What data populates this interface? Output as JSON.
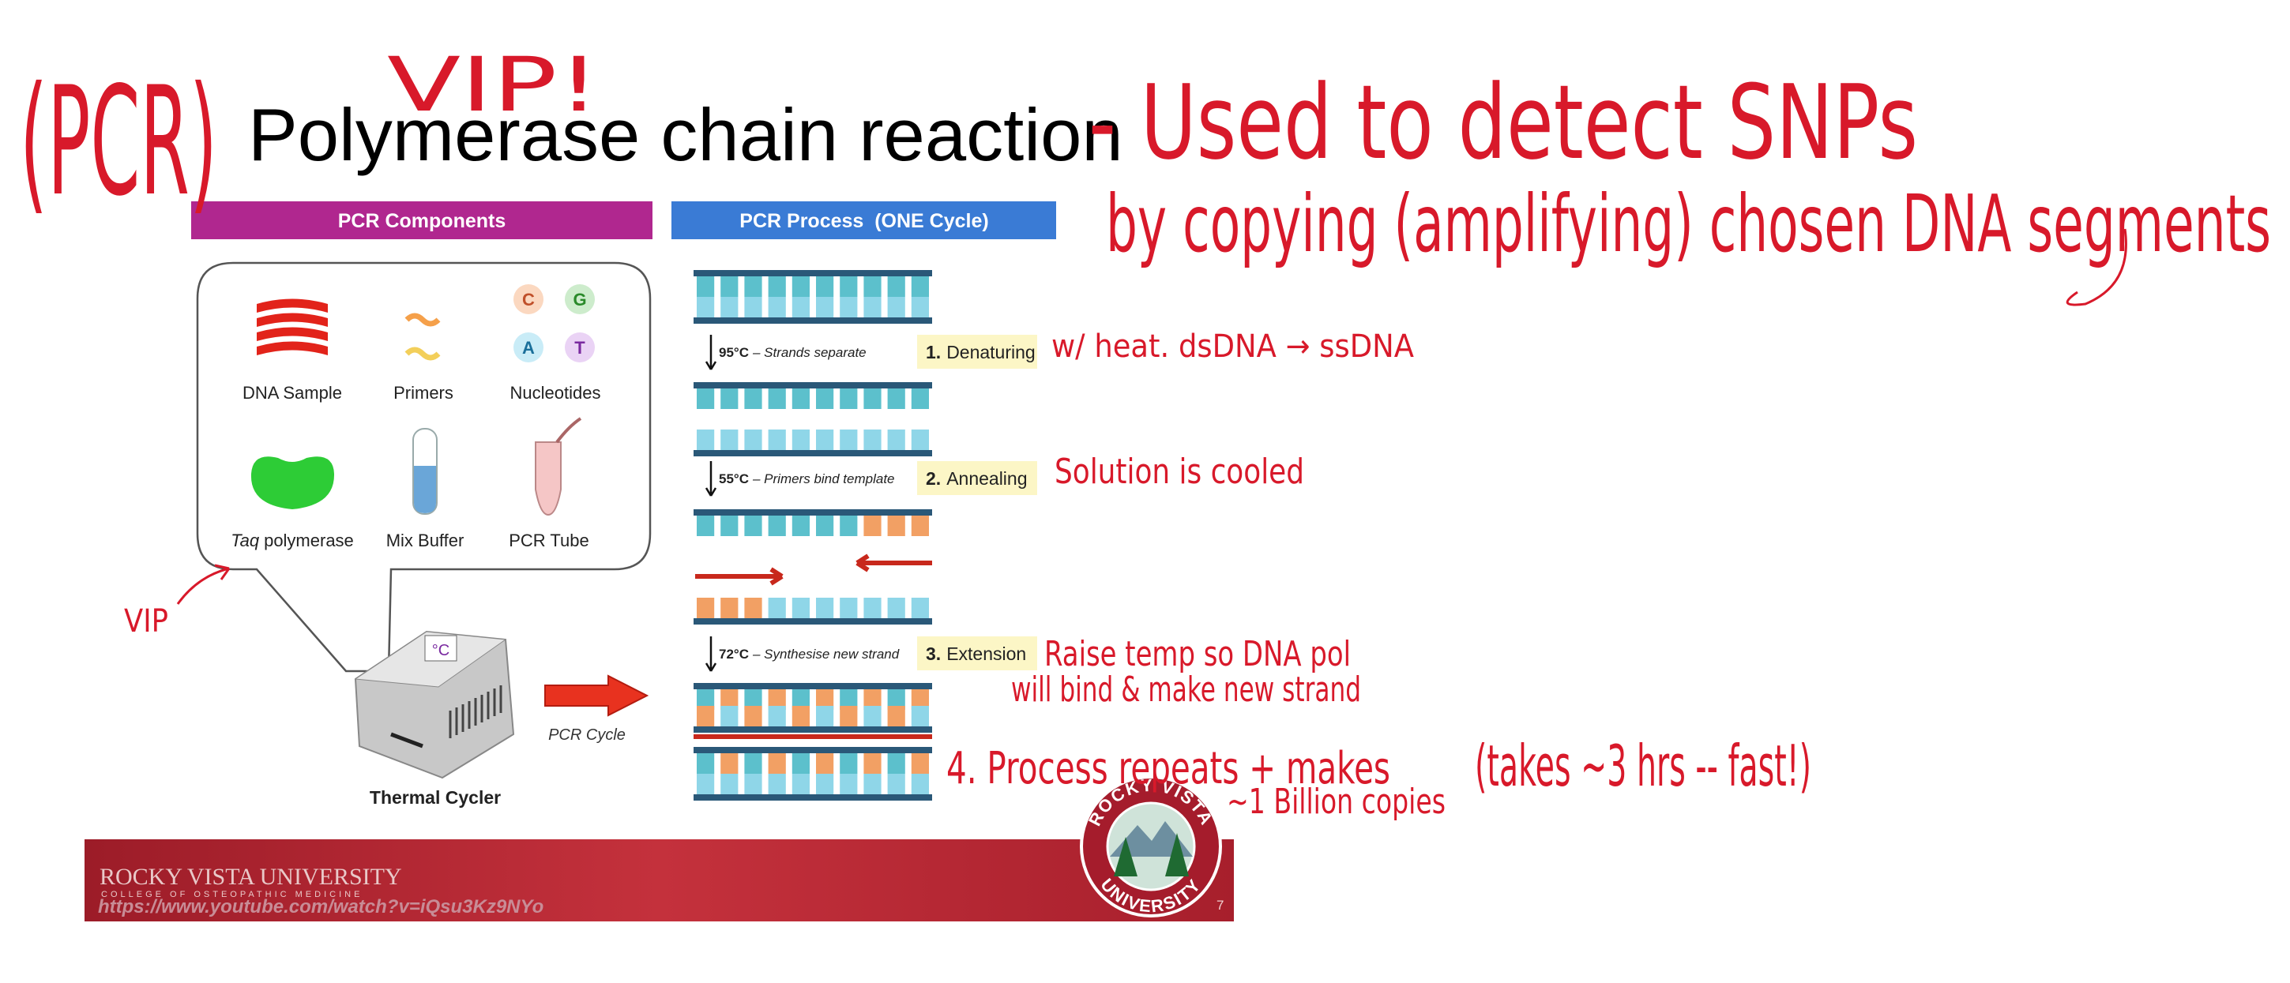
{
  "annotations": {
    "pcr": "(PCR)",
    "vip_top": "VIP!",
    "used_for": "- Used to detect SNPs",
    "by_copying": "by copying (amplifying) chosen DNA segments",
    "denature_note": "w/ heat. dsDNA → ssDNA",
    "anneal_note": "Solution is cooled",
    "extend_note_1": "Raise temp so DNA pol",
    "extend_note_2": "will bind & make new strand",
    "repeat_note_1": "4. Process repeats + makes",
    "repeat_note_2": "~1 Billion copies",
    "time_note": "(takes ~3 hrs -- fast!)",
    "vip_left": "VIP"
  },
  "slide": {
    "title": "Polymerase chain reaction",
    "components": {
      "header": "PCR Components",
      "items": [
        "DNA Sample",
        "Primers",
        "Nucleotides",
        "Mix Buffer",
        "PCR Tube"
      ],
      "taq": {
        "italic": "Taq",
        "rest": "polymerase"
      },
      "nucleotides": [
        "C",
        "G",
        "A",
        "T"
      ],
      "cycler_display": "°C",
      "cycler_label": "Thermal Cycler",
      "cycle_arrow_label": "PCR Cycle"
    },
    "process": {
      "header": "PCR Process  (ONE Cycle)",
      "steps": [
        {
          "temp": "95°C",
          "desc": "– Strands separate",
          "number": "1.",
          "name": "Denaturing"
        },
        {
          "temp": "55°C",
          "desc": "– Primers bind template",
          "number": "2.",
          "name": "Annealing"
        },
        {
          "temp": "72°C",
          "desc": "– Synthesise new strand",
          "number": "3.",
          "name": "Extension"
        }
      ]
    },
    "footer": {
      "university": "ROCKY VISTA UNIVERSITY",
      "college": "COLLEGE OF OSTEOPATHIC MEDICINE",
      "url": "https://www.youtube.com/watch?v=iQsu3Kz9NYo",
      "page": "7",
      "seal_top": "ROCKY VISTA",
      "seal_bottom": "UNIVERSITY"
    }
  }
}
